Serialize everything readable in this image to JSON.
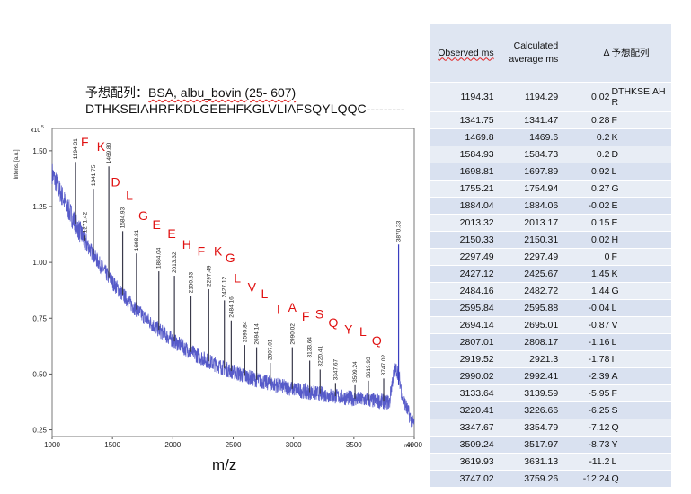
{
  "header": {
    "title_prefix": "予想配列：",
    "title_rest": "BSA, albu_bovin (25- 607)",
    "sequence": "DTHKSEIAHRFKDLGEEHFKGLVLIAFSQYLQQC---------"
  },
  "table": {
    "columns": [
      "Observed ms",
      "Calculated average ms",
      "Δ",
      "予想配列"
    ],
    "rows": [
      [
        "1194.31",
        "1194.29",
        "0.02",
        "DTHKSEIAHR"
      ],
      [
        "1341.75",
        "1341.47",
        "0.28",
        "F"
      ],
      [
        "1469.8",
        "1469.6",
        "0.2",
        "K"
      ],
      [
        "1584.93",
        "1584.73",
        "0.2",
        "D"
      ],
      [
        "1698.81",
        "1697.89",
        "0.92",
        "L"
      ],
      [
        "1755.21",
        "1754.94",
        "0.27",
        "G"
      ],
      [
        "1884.04",
        "1884.06",
        "-0.02",
        "E"
      ],
      [
        "2013.32",
        "2013.17",
        "0.15",
        "E"
      ],
      [
        "2150.33",
        "2150.31",
        "0.02",
        "H"
      ],
      [
        "2297.49",
        "2297.49",
        "0",
        "F"
      ],
      [
        "2427.12",
        "2425.67",
        "1.45",
        "K"
      ],
      [
        "2484.16",
        "2482.72",
        "1.44",
        "G"
      ],
      [
        "2595.84",
        "2595.88",
        "-0.04",
        "L"
      ],
      [
        "2694.14",
        "2695.01",
        "-0.87",
        "V"
      ],
      [
        "2807.01",
        "2808.17",
        "-1.16",
        "L"
      ],
      [
        "2919.52",
        "2921.3",
        "-1.78",
        "I"
      ],
      [
        "2990.02",
        "2992.41",
        "-2.39",
        "A"
      ],
      [
        "3133.64",
        "3139.59",
        "-5.95",
        "F"
      ],
      [
        "3220.41",
        "3226.66",
        "-6.25",
        "S"
      ],
      [
        "3347.67",
        "3354.79",
        "-7.12",
        "Q"
      ],
      [
        "3509.24",
        "3517.97",
        "-8.73",
        "Y"
      ],
      [
        "3619.93",
        "3631.13",
        "-11.2",
        "L"
      ],
      [
        "3747.02",
        "3759.26",
        "-12.24",
        "Q"
      ]
    ]
  },
  "chart_data": {
    "type": "line",
    "title": "",
    "xlabel": "m/z",
    "ylabel": "Intens. [a.u.]",
    "y_multiplier_label": "x10",
    "y_multiplier_exp": "5",
    "xlim": [
      1000,
      4000
    ],
    "ylim": [
      0.22,
      1.6
    ],
    "x_ticks": [
      "1000",
      "1500",
      "2000",
      "2500",
      "3000",
      "3500",
      "4000"
    ],
    "x_tick_values": [
      1000,
      1500,
      2000,
      2500,
      3000,
      3500,
      4000
    ],
    "y_ticks": [
      "0.25",
      "0.50",
      "0.75",
      "1.00",
      "1.25",
      "1.50"
    ],
    "y_tick_values": [
      0.25,
      0.5,
      0.75,
      1.0,
      1.25,
      1.5
    ],
    "x_axis_unit": "m/z",
    "peaks": [
      {
        "mz": 1194.31,
        "label": "1194.31",
        "intensity": 1.45
      },
      {
        "mz": 1271.42,
        "label": "1271.42",
        "intensity": 1.12
      },
      {
        "mz": 1341.75,
        "label": "1341.75",
        "intensity": 1.33
      },
      {
        "mz": 1469.8,
        "label": "1469.80",
        "intensity": 1.43
      },
      {
        "mz": 1584.93,
        "label": "1584.93",
        "intensity": 1.14
      },
      {
        "mz": 1698.81,
        "label": "1698.81",
        "intensity": 1.04
      },
      {
        "mz": 1884.04,
        "label": "1884.04",
        "intensity": 0.96
      },
      {
        "mz": 2013.32,
        "label": "2013.32",
        "intensity": 0.94
      },
      {
        "mz": 2150.33,
        "label": "2150.33",
        "intensity": 0.85
      },
      {
        "mz": 2297.49,
        "label": "2297.49",
        "intensity": 0.88
      },
      {
        "mz": 2427.12,
        "label": "2427.12",
        "intensity": 0.83
      },
      {
        "mz": 2484.16,
        "label": "2484.16",
        "intensity": 0.74
      },
      {
        "mz": 2595.84,
        "label": "2595.84",
        "intensity": 0.63
      },
      {
        "mz": 2694.14,
        "label": "2694.14",
        "intensity": 0.62
      },
      {
        "mz": 2807.01,
        "label": "2807.01",
        "intensity": 0.55
      },
      {
        "mz": 2990.02,
        "label": "2990.02",
        "intensity": 0.62
      },
      {
        "mz": 3133.64,
        "label": "3133.64",
        "intensity": 0.56
      },
      {
        "mz": 3220.41,
        "label": "3220.41",
        "intensity": 0.52
      },
      {
        "mz": 3347.67,
        "label": "3347.67",
        "intensity": 0.46
      },
      {
        "mz": 3509.24,
        "label": "3509.24",
        "intensity": 0.45
      },
      {
        "mz": 3619.93,
        "label": "3619.93",
        "intensity": 0.47
      },
      {
        "mz": 3747.02,
        "label": "3747.02",
        "intensity": 0.48
      },
      {
        "mz": 3870.33,
        "label": "3870.33",
        "intensity": 1.08
      }
    ],
    "annotations": [
      {
        "text": "F",
        "mz": 1270,
        "intensity": 1.52
      },
      {
        "text": "K",
        "mz": 1405,
        "intensity": 1.5
      },
      {
        "text": "D",
        "mz": 1525,
        "intensity": 1.34
      },
      {
        "text": "L",
        "mz": 1640,
        "intensity": 1.28
      },
      {
        "text": "G",
        "mz": 1755,
        "intensity": 1.19
      },
      {
        "text": "E",
        "mz": 1865,
        "intensity": 1.15
      },
      {
        "text": "E",
        "mz": 1990,
        "intensity": 1.11
      },
      {
        "text": "H",
        "mz": 2115,
        "intensity": 1.06
      },
      {
        "text": "F",
        "mz": 2235,
        "intensity": 1.03
      },
      {
        "text": "K",
        "mz": 2375,
        "intensity": 1.03
      },
      {
        "text": "G",
        "mz": 2475,
        "intensity": 1.0
      },
      {
        "text": "L",
        "mz": 2535,
        "intensity": 0.91
      },
      {
        "text": "V",
        "mz": 2655,
        "intensity": 0.87
      },
      {
        "text": "L",
        "mz": 2760,
        "intensity": 0.84
      },
      {
        "text": "I",
        "mz": 2875,
        "intensity": 0.77
      },
      {
        "text": "A",
        "mz": 2990,
        "intensity": 0.78
      },
      {
        "text": "F",
        "mz": 3100,
        "intensity": 0.74
      },
      {
        "text": "S",
        "mz": 3215,
        "intensity": 0.75
      },
      {
        "text": "Q",
        "mz": 3330,
        "intensity": 0.71
      },
      {
        "text": "Y",
        "mz": 3455,
        "intensity": 0.68
      },
      {
        "text": "L",
        "mz": 3575,
        "intensity": 0.67
      },
      {
        "text": "Q",
        "mz": 3690,
        "intensity": 0.63
      }
    ],
    "colors": {
      "trace": "#3a3ec0",
      "peak": "#3a3a4a",
      "annotation": "#e01010",
      "axis": "#333333"
    }
  }
}
